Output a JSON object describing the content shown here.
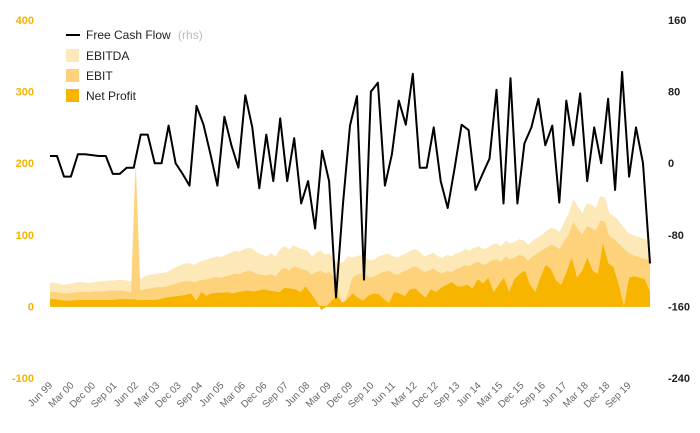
{
  "chart_data": {
    "type": "area",
    "title": "",
    "xlabel": "",
    "ylabel": "",
    "ylim_left": [
      -100,
      400
    ],
    "ylim_right": [
      -240,
      160
    ],
    "yticks_left": [
      -100,
      0,
      100,
      200,
      300,
      400
    ],
    "yticks_right": [
      -240,
      -160,
      -80,
      0,
      80,
      160
    ],
    "grid": false,
    "legend_position": "top-left",
    "colors": {
      "ebitda": "#fde8b8",
      "ebit": "#fdd27a",
      "net_profit": "#f7b500",
      "fcf": "#000000",
      "left_axis": "#f5b300",
      "right_axis": "#222222",
      "zero_line": "#f5b300"
    },
    "legend": {
      "fcf": "Free Cash Flow",
      "fcf_note": "(rhs)",
      "ebitda": "EBITDA",
      "ebit": "EBIT",
      "net_profit": "Net Profit"
    },
    "x_tick_labels": [
      "Jun 99",
      "Mar 00",
      "Dec 00",
      "Sep 01",
      "Jun 02",
      "Mar 03",
      "Dec 03",
      "Sep 04",
      "Jun 05",
      "Mar 06",
      "Dec 06",
      "Sep 07",
      "Jun 08",
      "Mar 09",
      "Dec 09",
      "Sep 10",
      "Jun 11",
      "Mar 12",
      "Dec 12",
      "Sep 13",
      "Jun 14",
      "Mar 15",
      "Dec 15",
      "Sep 16",
      "Jun 17",
      "Mar 18",
      "Dec 18",
      "Sep 19"
    ],
    "series": [
      {
        "name": "EBITDA",
        "axis": "left",
        "values": [
          33,
          33,
          32,
          30,
          31,
          32,
          34,
          34,
          33,
          33,
          34,
          35,
          35,
          36,
          36,
          37,
          37,
          36,
          35,
          210,
          38,
          42,
          44,
          45,
          46,
          47,
          48,
          52,
          55,
          58,
          60,
          60,
          58,
          62,
          64,
          66,
          68,
          70,
          69,
          72,
          75,
          78,
          76,
          80,
          82,
          80,
          75,
          72,
          70,
          74,
          70,
          80,
          84,
          80,
          85,
          82,
          80,
          78,
          70,
          75,
          78,
          72,
          74,
          65,
          60,
          62,
          70,
          68,
          70,
          72,
          68,
          64,
          66,
          70,
          72,
          74,
          70,
          68,
          72,
          74,
          78,
          80,
          76,
          70,
          72,
          75,
          70,
          68,
          72,
          70,
          74,
          76,
          80,
          78,
          82,
          84,
          80,
          82,
          86,
          88,
          84,
          92,
          88,
          90,
          94,
          92,
          86,
          92,
          96,
          100,
          105,
          110,
          108,
          104,
          118,
          130,
          150,
          140,
          130,
          144,
          142,
          138,
          154,
          152,
          130,
          126,
          120,
          112,
          104,
          100,
          98,
          96,
          94,
          92
        ]
      },
      {
        "name": "EBIT",
        "axis": "left",
        "values": [
          20,
          20,
          19,
          18,
          18,
          19,
          20,
          20,
          20,
          20,
          21,
          21,
          21,
          22,
          22,
          22,
          22,
          21,
          20,
          195,
          22,
          24,
          25,
          26,
          27,
          27,
          28,
          30,
          32,
          34,
          35,
          35,
          34,
          36,
          37,
          38,
          40,
          41,
          40,
          42,
          44,
          46,
          45,
          48,
          50,
          48,
          45,
          44,
          43,
          45,
          42,
          50,
          54,
          50,
          56,
          54,
          52,
          50,
          44,
          48,
          50,
          46,
          48,
          40,
          20,
          0,
          18,
          40,
          44,
          46,
          44,
          40,
          42,
          46,
          48,
          50,
          46,
          44,
          48,
          50,
          54,
          56,
          52,
          48,
          50,
          53,
          48,
          46,
          50,
          48,
          52,
          54,
          58,
          56,
          60,
          62,
          58,
          60,
          64,
          66,
          62,
          70,
          66,
          68,
          72,
          70,
          64,
          70,
          74,
          78,
          82,
          86,
          84,
          80,
          92,
          100,
          118,
          108,
          100,
          112,
          110,
          106,
          120,
          118,
          98,
          94,
          88,
          82,
          76,
          72,
          70,
          68,
          66,
          64
        ]
      },
      {
        "name": "Net Profit",
        "axis": "left",
        "values": [
          10,
          10,
          9,
          8,
          8,
          9,
          9,
          9,
          9,
          9,
          9,
          9,
          9,
          10,
          10,
          10,
          10,
          9,
          9,
          9,
          9,
          10,
          12,
          13,
          14,
          15,
          16,
          18,
          8,
          20,
          15,
          18,
          19,
          19,
          20,
          18,
          20,
          21,
          22,
          21,
          22,
          24,
          22,
          21,
          20,
          26,
          25,
          24,
          20,
          28,
          18,
          8,
          -5,
          0,
          8,
          15,
          5,
          10,
          18,
          12,
          8,
          15,
          18,
          17,
          10,
          5,
          20,
          18,
          14,
          24,
          25,
          18,
          12,
          24,
          20,
          26,
          30,
          34,
          28,
          28,
          30,
          25,
          38,
          32,
          40,
          20,
          30,
          40,
          20,
          38,
          45,
          50,
          30,
          20,
          40,
          58,
          52,
          36,
          30,
          48,
          68,
          40,
          50,
          68,
          50,
          45,
          88,
          60,
          55,
          30,
          0,
          40,
          42,
          40,
          38,
          20
        ]
      },
      {
        "name": "Free Cash Flow",
        "axis": "right",
        "values": [
          8,
          8,
          -15,
          -15,
          10,
          10,
          9,
          8,
          8,
          -12,
          -12,
          -5,
          -5,
          32,
          32,
          0,
          0,
          42,
          0,
          -12,
          -25,
          64,
          43,
          10,
          -25,
          52,
          20,
          -5,
          76,
          40,
          -28,
          32,
          -20,
          50,
          -20,
          28,
          -45,
          -20,
          -73,
          14,
          -20,
          -150,
          -45,
          42,
          75,
          -130,
          80,
          90,
          -25,
          10,
          70,
          43,
          100,
          -5,
          -5,
          40,
          -20,
          -50,
          -5,
          43,
          37,
          -30,
          -12,
          5,
          82,
          -45,
          95,
          -45,
          22,
          40,
          72,
          20,
          42,
          -44,
          70,
          20,
          78,
          -20,
          40,
          0,
          72,
          -30,
          102,
          -15,
          40,
          0,
          -112
        ]
      }
    ]
  }
}
